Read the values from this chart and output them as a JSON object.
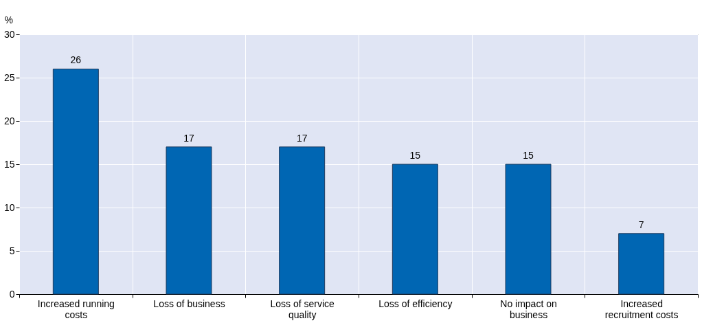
{
  "chart_data": {
    "type": "bar",
    "ylabel": "%",
    "categories": [
      "Increased running costs",
      "Loss of business",
      "Loss of service quality",
      "Loss of efficiency",
      "No impact on business",
      "Increased recruitment costs"
    ],
    "values": [
      26,
      17,
      17,
      15,
      15,
      7
    ],
    "color": "#0066b3",
    "ylim": [
      0,
      30
    ],
    "yticks": [
      0,
      5,
      10,
      15,
      20,
      25,
      30
    ],
    "grid": true,
    "data_labels": true
  }
}
